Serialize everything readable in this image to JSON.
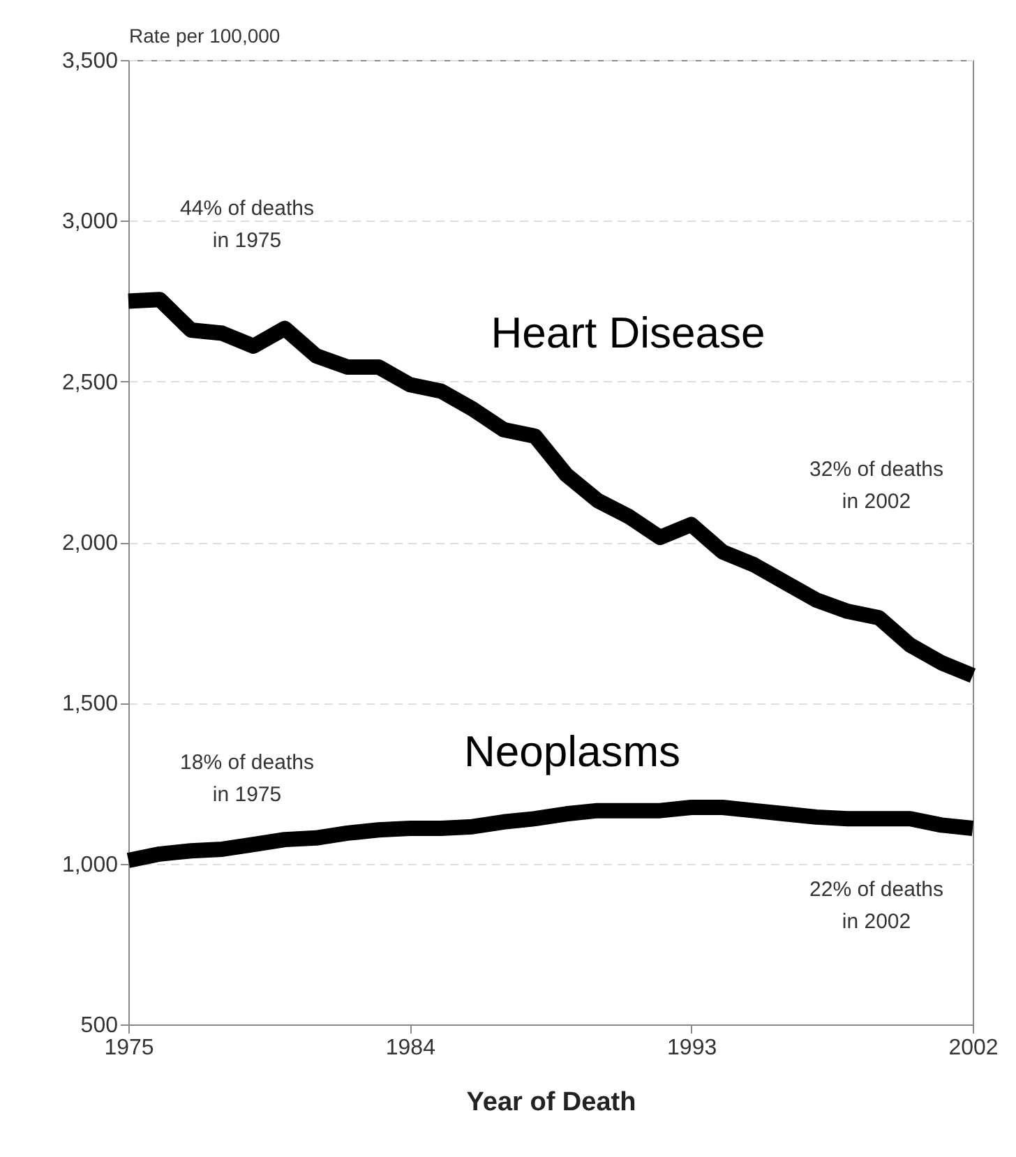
{
  "chart_data": {
    "type": "line",
    "ylabel": "Rate per 100,000",
    "xlabel": "Year of Death",
    "x": [
      1975,
      1976,
      1977,
      1978,
      1979,
      1980,
      1981,
      1982,
      1983,
      1984,
      1985,
      1986,
      1987,
      1988,
      1989,
      1990,
      1991,
      1992,
      1993,
      1994,
      1995,
      1996,
      1997,
      1998,
      1999,
      2000,
      2001,
      2002
    ],
    "series": [
      {
        "name": "Heart Disease",
        "color": "#000000",
        "values": [
          2750,
          2755,
          2660,
          2650,
          2610,
          2665,
          2580,
          2545,
          2545,
          2490,
          2470,
          2415,
          2350,
          2330,
          2210,
          2130,
          2080,
          2015,
          2055,
          1970,
          1930,
          1875,
          1820,
          1785,
          1765,
          1680,
          1625,
          1585
        ]
      },
      {
        "name": "Neoplasms",
        "color": "#000000",
        "values": [
          1010,
          1030,
          1040,
          1045,
          1060,
          1075,
          1080,
          1095,
          1105,
          1110,
          1110,
          1115,
          1130,
          1140,
          1155,
          1165,
          1165,
          1165,
          1175,
          1175,
          1165,
          1155,
          1145,
          1140,
          1140,
          1140,
          1120,
          1110
        ]
      }
    ],
    "annotations": [
      "44% of deaths\nin 1975",
      "32% of deaths\nin 2002",
      "18% of deaths\nin 1975",
      "22% of deaths\nin 2002"
    ],
    "xlim": [
      1975,
      2002
    ],
    "xticks": [
      1975,
      1984,
      1993,
      2002
    ],
    "ylim": [
      500,
      3500
    ],
    "yticks": [
      500,
      {
        "value": 1000,
        "label": "1,000"
      },
      {
        "value": 1500,
        "label": "1,500"
      },
      {
        "value": 2000,
        "label": "2,000"
      },
      {
        "value": 2500,
        "label": "2,500"
      },
      {
        "value": 3000,
        "label": "3,000"
      },
      {
        "value": 3500,
        "label": "3,500"
      }
    ],
    "grid": "y",
    "line_style": "solid",
    "marker": "none"
  }
}
